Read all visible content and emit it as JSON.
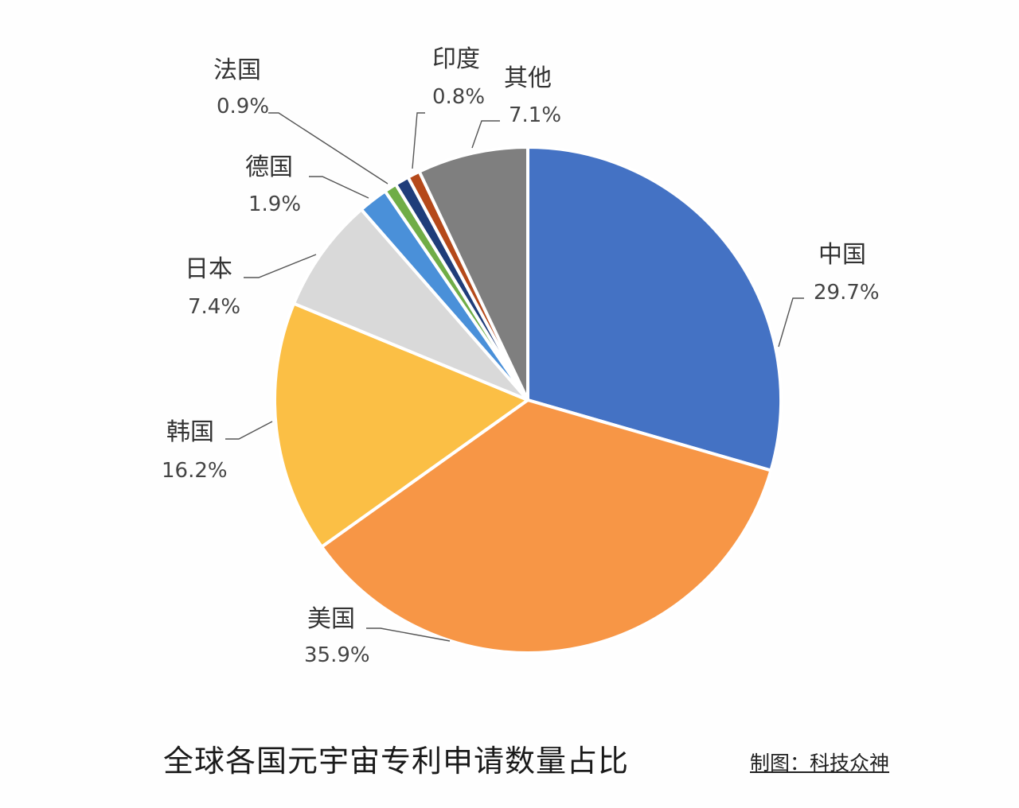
{
  "chart_data": {
    "type": "pie",
    "title": "全球各国元宇宙专利申请数量占比",
    "credit": "制图：科技众神",
    "slices": [
      {
        "name": "中国",
        "value": 29.7,
        "label": "29.7%",
        "color": "#4472c4"
      },
      {
        "name": "美国",
        "value": 35.9,
        "label": "35.9%",
        "color": "#f79646"
      },
      {
        "name": "韩国",
        "value": 16.2,
        "label": "16.2%",
        "color": "#fbbf45"
      },
      {
        "name": "日本",
        "value": 7.4,
        "label": "7.4%",
        "color": "#d9d9d9"
      },
      {
        "name": "德国",
        "value": 1.9,
        "label": "1.9%",
        "color": "#4a90d9"
      },
      {
        "name": "",
        "value": 0.8,
        "label": "",
        "color": "#70ad47"
      },
      {
        "name": "法国",
        "value": 0.9,
        "label": "0.9%",
        "color": "#1f3d7a"
      },
      {
        "name": "印度",
        "value": 0.8,
        "label": "0.8%",
        "color": "#b5491a"
      },
      {
        "name": "其他",
        "value": 7.1,
        "label": "7.1%",
        "color": "#7f7f7f"
      }
    ]
  }
}
